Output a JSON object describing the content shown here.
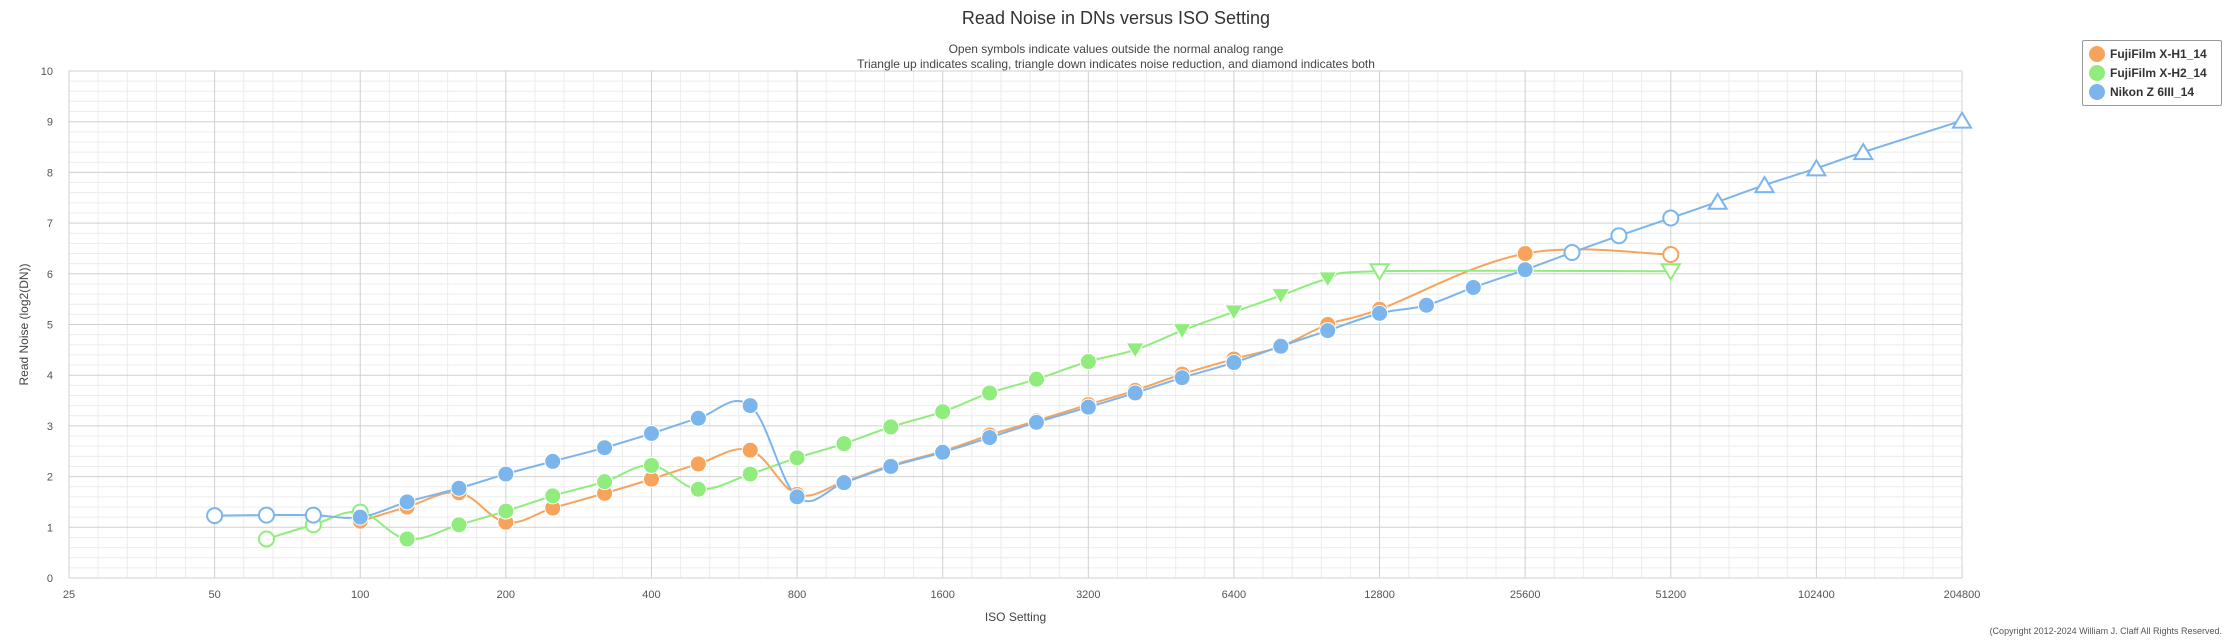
{
  "chart_data": {
    "type": "line",
    "title": "Read Noise in DNs versus ISO Setting",
    "subtitle": [
      "Open symbols indicate values outside the normal analog range",
      "Triangle up indicates scaling, triangle down indicates noise reduction, and diamond indicates both"
    ],
    "xlabel": "ISO Setting",
    "ylabel": "Read Noise (log2(DN))",
    "x_scale": "log2",
    "xlim": [
      25,
      204800
    ],
    "ylim": [
      0,
      10
    ],
    "x_ticks": [
      25,
      50,
      100,
      200,
      400,
      800,
      1600,
      3200,
      6400,
      12800,
      25600,
      51200,
      102400,
      204800
    ],
    "y_ticks": [
      0,
      1,
      2,
      3,
      4,
      5,
      6,
      7,
      8,
      9,
      10
    ],
    "grid": true,
    "legend_position": "top-right",
    "series": [
      {
        "name": "FujiFilm X-H1_14",
        "color": "#f7a35c",
        "points": [
          {
            "x": 100,
            "y": 1.12
          },
          {
            "x": 125,
            "y": 1.4
          },
          {
            "x": 160,
            "y": 1.68
          },
          {
            "x": 200,
            "y": 1.1
          },
          {
            "x": 250,
            "y": 1.38
          },
          {
            "x": 320,
            "y": 1.67
          },
          {
            "x": 400,
            "y": 1.95
          },
          {
            "x": 500,
            "y": 2.25
          },
          {
            "x": 640,
            "y": 2.52
          },
          {
            "x": 800,
            "y": 1.65
          },
          {
            "x": 1000,
            "y": 1.9
          },
          {
            "x": 1250,
            "y": 2.22
          },
          {
            "x": 1600,
            "y": 2.5
          },
          {
            "x": 2000,
            "y": 2.82
          },
          {
            "x": 2500,
            "y": 3.1
          },
          {
            "x": 3200,
            "y": 3.42
          },
          {
            "x": 4000,
            "y": 3.7
          },
          {
            "x": 5000,
            "y": 4.02
          },
          {
            "x": 6400,
            "y": 4.32
          },
          {
            "x": 8000,
            "y": 4.57
          },
          {
            "x": 10000,
            "y": 5.0
          },
          {
            "x": 12800,
            "y": 5.3
          },
          {
            "x": 25600,
            "y": 6.4
          },
          {
            "x": 51200,
            "y": 6.38,
            "marker": "open-circle"
          }
        ]
      },
      {
        "name": "FujiFilm X-H2_14",
        "color": "#90ed7d",
        "points": [
          {
            "x": 64,
            "y": 0.77,
            "marker": "open-circle"
          },
          {
            "x": 80,
            "y": 1.05,
            "marker": "open-circle"
          },
          {
            "x": 100,
            "y": 1.3,
            "marker": "open-circle"
          },
          {
            "x": 125,
            "y": 0.77
          },
          {
            "x": 160,
            "y": 1.05
          },
          {
            "x": 200,
            "y": 1.32
          },
          {
            "x": 250,
            "y": 1.62
          },
          {
            "x": 320,
            "y": 1.9
          },
          {
            "x": 400,
            "y": 2.22
          },
          {
            "x": 500,
            "y": 1.75
          },
          {
            "x": 640,
            "y": 2.05
          },
          {
            "x": 800,
            "y": 2.37
          },
          {
            "x": 1000,
            "y": 2.65
          },
          {
            "x": 1250,
            "y": 2.98
          },
          {
            "x": 1600,
            "y": 3.28
          },
          {
            "x": 2000,
            "y": 3.65
          },
          {
            "x": 2500,
            "y": 3.92
          },
          {
            "x": 3200,
            "y": 4.27
          },
          {
            "x": 4000,
            "y": 4.5,
            "marker": "triangle-down"
          },
          {
            "x": 5000,
            "y": 4.88,
            "marker": "triangle-down"
          },
          {
            "x": 6400,
            "y": 5.25,
            "marker": "triangle-down"
          },
          {
            "x": 8000,
            "y": 5.57,
            "marker": "triangle-down"
          },
          {
            "x": 10000,
            "y": 5.9,
            "marker": "triangle-down"
          },
          {
            "x": 12800,
            "y": 6.05,
            "marker": "open-triangle-down"
          },
          {
            "x": 51200,
            "y": 6.05,
            "marker": "open-triangle-down"
          }
        ]
      },
      {
        "name": "Nikon Z 6III_14",
        "color": "#7cb5ec",
        "points": [
          {
            "x": 50,
            "y": 1.23,
            "marker": "open-circle"
          },
          {
            "x": 64,
            "y": 1.24,
            "marker": "open-circle"
          },
          {
            "x": 80,
            "y": 1.24,
            "marker": "open-circle"
          },
          {
            "x": 100,
            "y": 1.2
          },
          {
            "x": 125,
            "y": 1.5
          },
          {
            "x": 160,
            "y": 1.77
          },
          {
            "x": 200,
            "y": 2.05
          },
          {
            "x": 250,
            "y": 2.3
          },
          {
            "x": 320,
            "y": 2.57
          },
          {
            "x": 400,
            "y": 2.85
          },
          {
            "x": 500,
            "y": 3.15
          },
          {
            "x": 640,
            "y": 3.4
          },
          {
            "x": 800,
            "y": 1.6
          },
          {
            "x": 1000,
            "y": 1.88
          },
          {
            "x": 1250,
            "y": 2.2
          },
          {
            "x": 1600,
            "y": 2.48
          },
          {
            "x": 2000,
            "y": 2.77
          },
          {
            "x": 2500,
            "y": 3.07
          },
          {
            "x": 3200,
            "y": 3.37
          },
          {
            "x": 4000,
            "y": 3.65
          },
          {
            "x": 5000,
            "y": 3.95
          },
          {
            "x": 6400,
            "y": 4.25
          },
          {
            "x": 8000,
            "y": 4.57
          },
          {
            "x": 10000,
            "y": 4.88
          },
          {
            "x": 12800,
            "y": 5.22
          },
          {
            "x": 16000,
            "y": 5.38
          },
          {
            "x": 20000,
            "y": 5.73
          },
          {
            "x": 25600,
            "y": 6.08
          },
          {
            "x": 32000,
            "y": 6.42,
            "marker": "open-circle"
          },
          {
            "x": 40000,
            "y": 6.75,
            "marker": "open-circle"
          },
          {
            "x": 51200,
            "y": 7.1,
            "marker": "open-circle"
          },
          {
            "x": 64000,
            "y": 7.42,
            "marker": "open-triangle-up"
          },
          {
            "x": 80000,
            "y": 7.75,
            "marker": "open-triangle-up"
          },
          {
            "x": 102400,
            "y": 8.08,
            "marker": "open-triangle-up"
          },
          {
            "x": 128000,
            "y": 8.4,
            "marker": "open-triangle-up"
          },
          {
            "x": 204800,
            "y": 9.02,
            "marker": "open-triangle-up"
          }
        ]
      }
    ]
  },
  "copyright": "(Copyright 2012-2024 William J. Claff All Rights Reserved."
}
